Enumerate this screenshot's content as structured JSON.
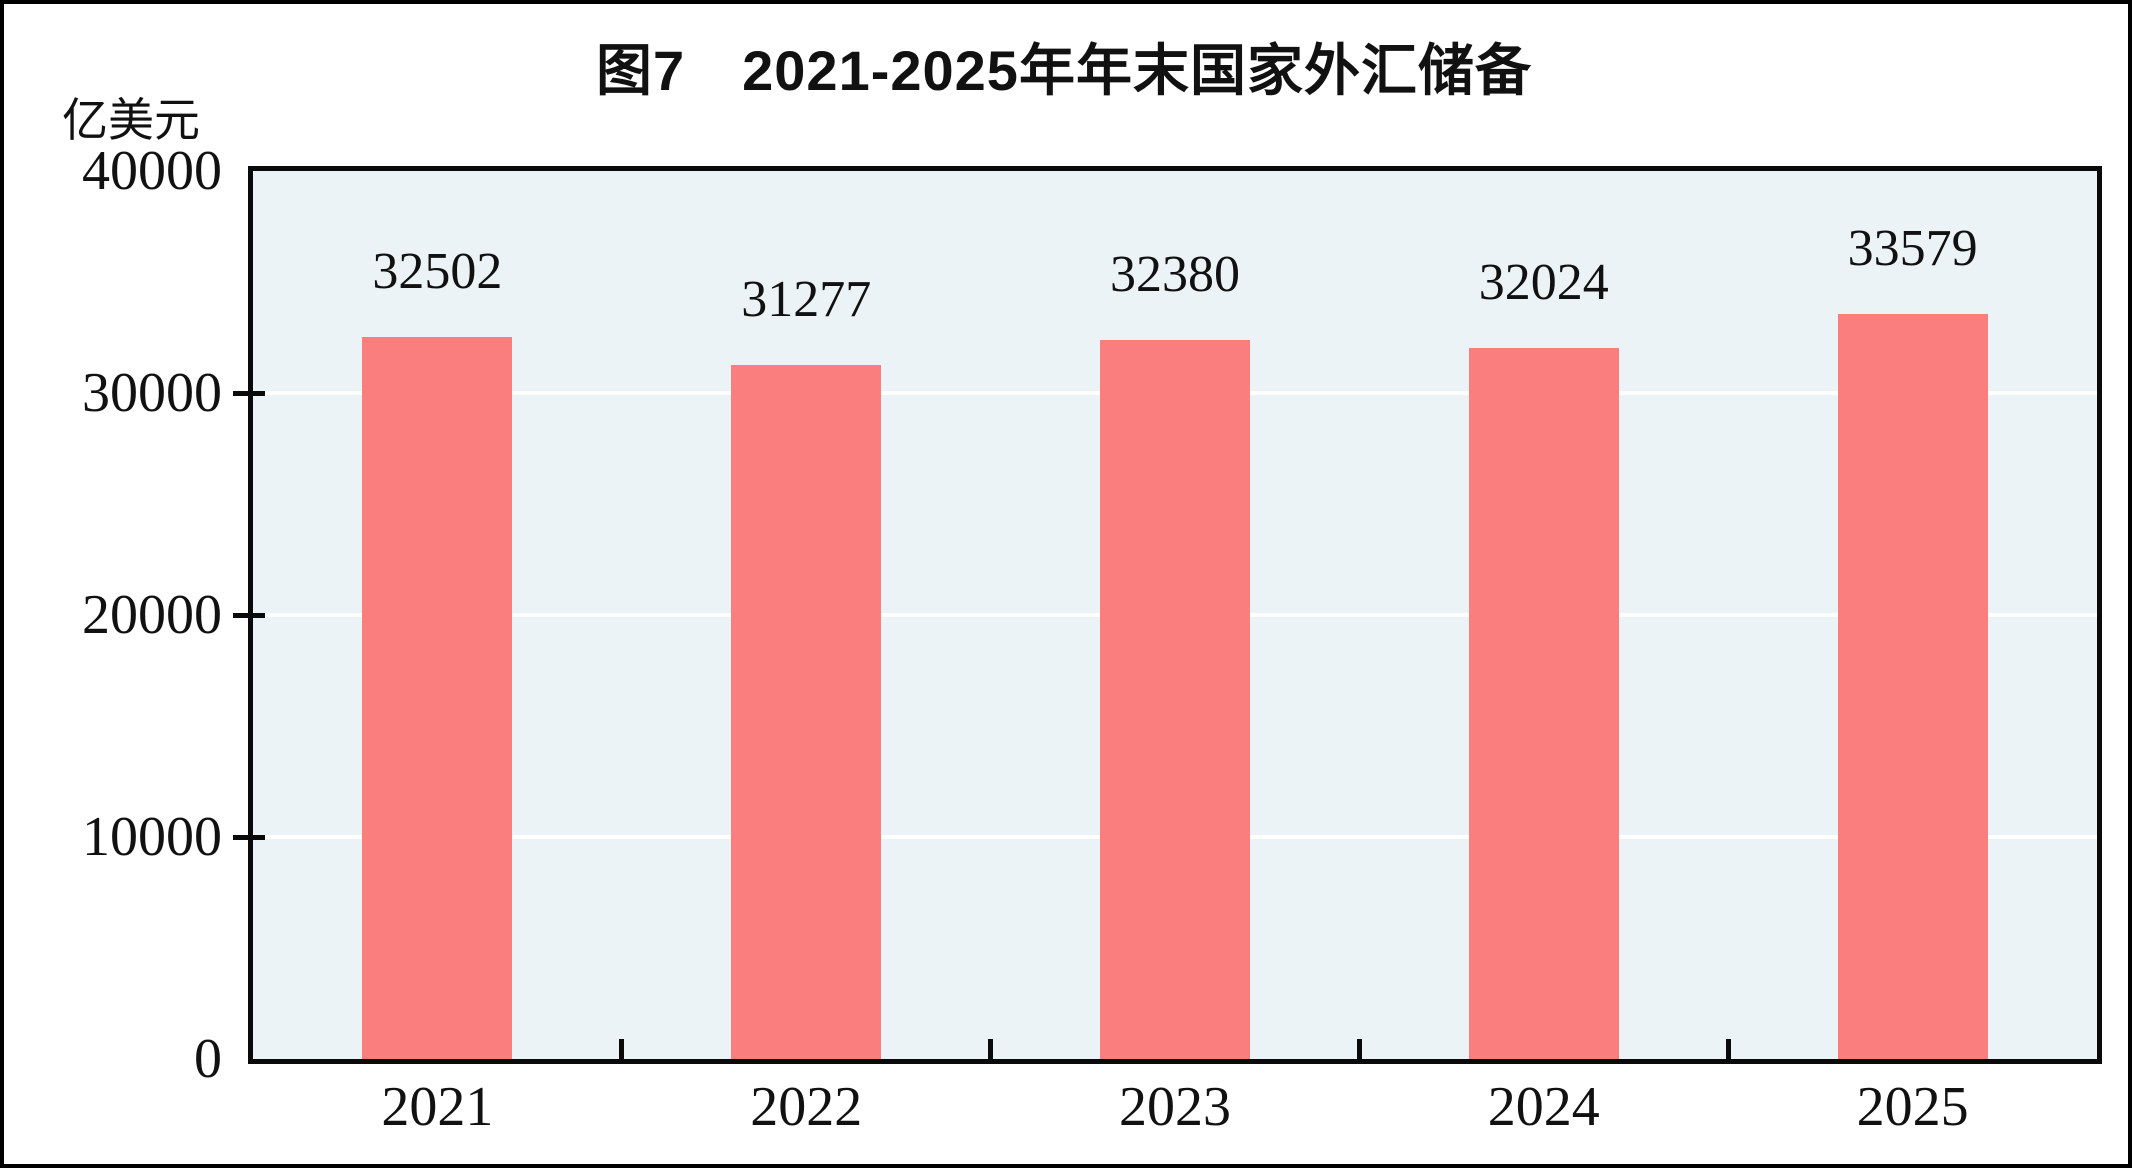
{
  "title": "图7　2021-2025年年末国家外汇储备",
  "unit_label": "亿美元",
  "chart_data": {
    "type": "bar",
    "title": "图7　2021-2025年年末国家外汇储备",
    "xlabel": "",
    "ylabel": "亿美元",
    "categories": [
      "2021",
      "2022",
      "2023",
      "2024",
      "2025"
    ],
    "values": [
      32502,
      31277,
      32380,
      32024,
      33579
    ],
    "data_labels": [
      "32502",
      "31277",
      "32380",
      "32024",
      "33579"
    ],
    "ylim": [
      0,
      40000
    ],
    "yticks": [
      0,
      10000,
      20000,
      30000,
      40000
    ],
    "grid": "horizontal white gridlines at y ticks",
    "legend_position": "none",
    "colors": {
      "bar_fill": "#FB7E7E",
      "plot_background": "#ECF3F6",
      "gridline": "#FFFFFF",
      "axis_border": "#0A0A0A",
      "text": "#111111",
      "page_background": "#FFFFFF"
    }
  }
}
